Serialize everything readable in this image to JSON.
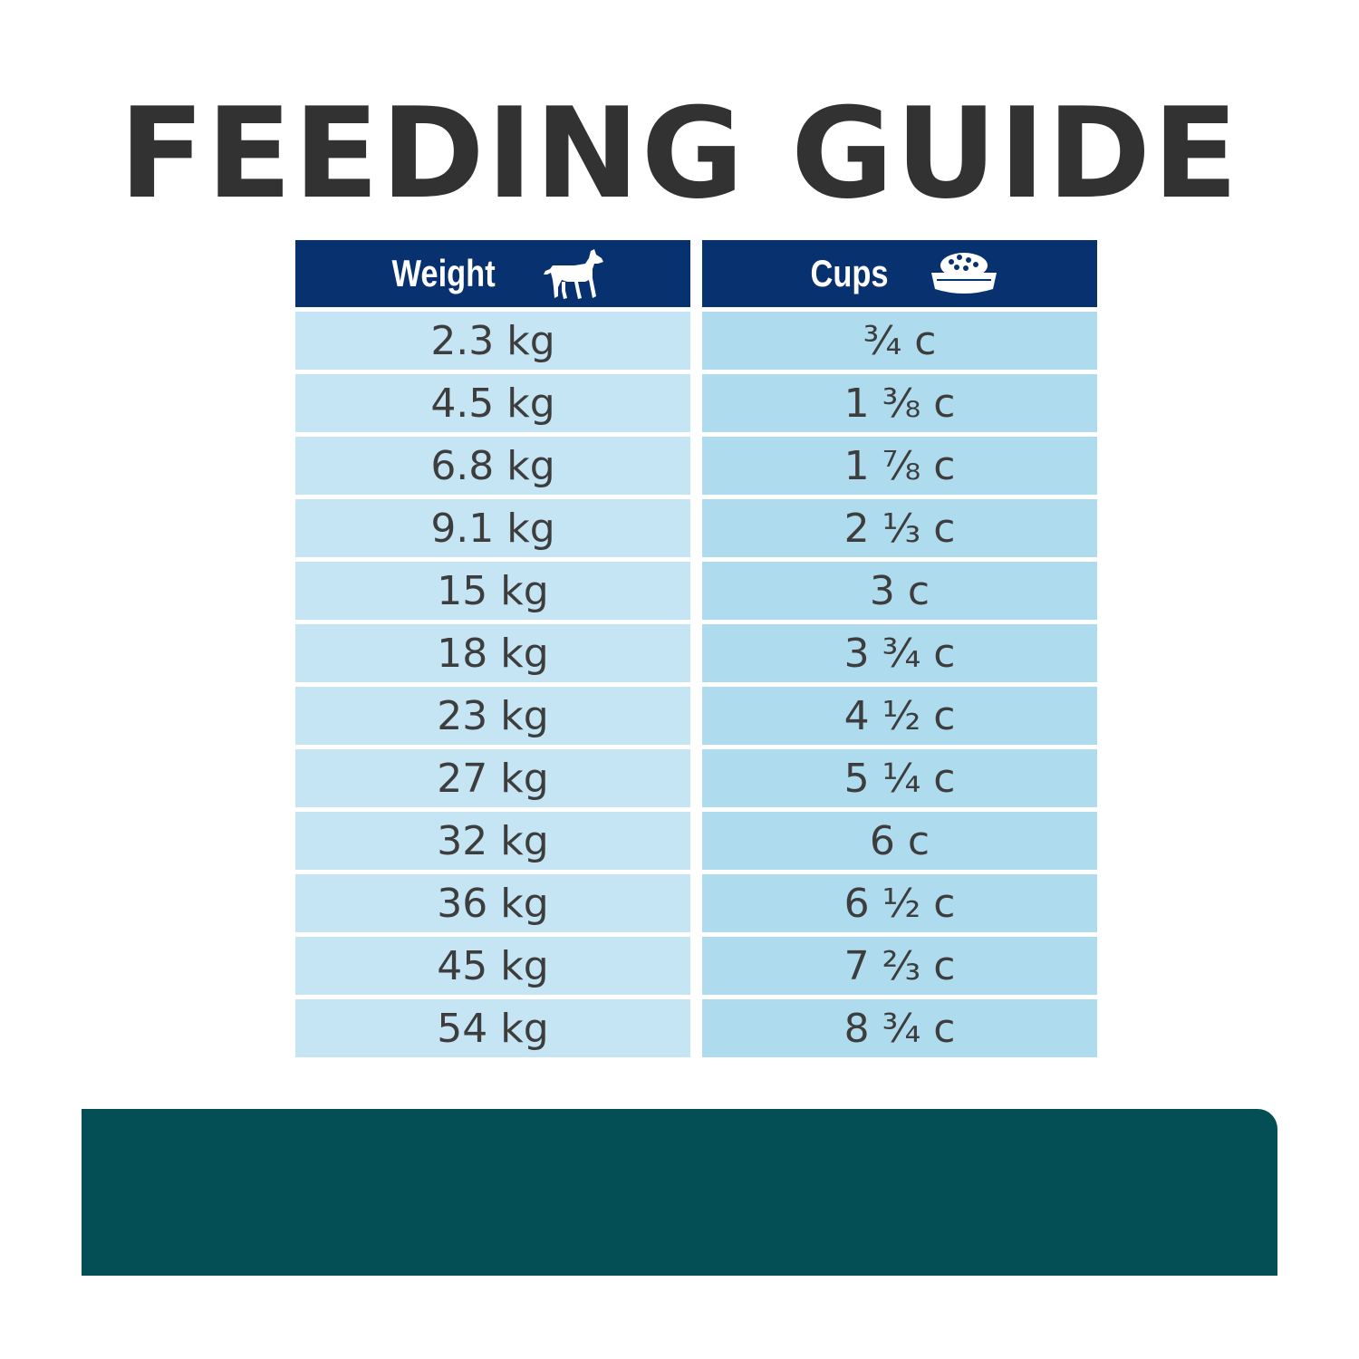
{
  "title": "FEEDING GUIDE",
  "table": {
    "headers": {
      "weight": "Weight",
      "cups": "Cups"
    },
    "icons": {
      "weight": "dog-icon",
      "cups": "food-bowl-icon"
    },
    "rows": [
      {
        "weight": "2.3 kg",
        "cups": "¾ c"
      },
      {
        "weight": "4.5 kg",
        "cups": "1 ⅜ c"
      },
      {
        "weight": "6.8 kg",
        "cups": "1 ⅞ c"
      },
      {
        "weight": "9.1 kg",
        "cups": "2 ⅓ c"
      },
      {
        "weight": "15 kg",
        "cups": "3 c"
      },
      {
        "weight": "18 kg",
        "cups": "3 ¾ c"
      },
      {
        "weight": "23 kg",
        "cups": "4 ½ c"
      },
      {
        "weight": "27 kg",
        "cups": "5 ¼ c"
      },
      {
        "weight": "32 kg",
        "cups": "6 c"
      },
      {
        "weight": "36 kg",
        "cups": "6 ½ c"
      },
      {
        "weight": "45 kg",
        "cups": "7 ⅔ c"
      },
      {
        "weight": "54 kg",
        "cups": "8 ¾ c"
      }
    ]
  },
  "colors": {
    "header_bg": "#08316f",
    "weight_cell_bg": "#c6e5f4",
    "cups_cell_bg": "#afdbef",
    "title_text": "#323232",
    "cell_text": "#3d3d3d",
    "bottom_band": "#044f56"
  }
}
